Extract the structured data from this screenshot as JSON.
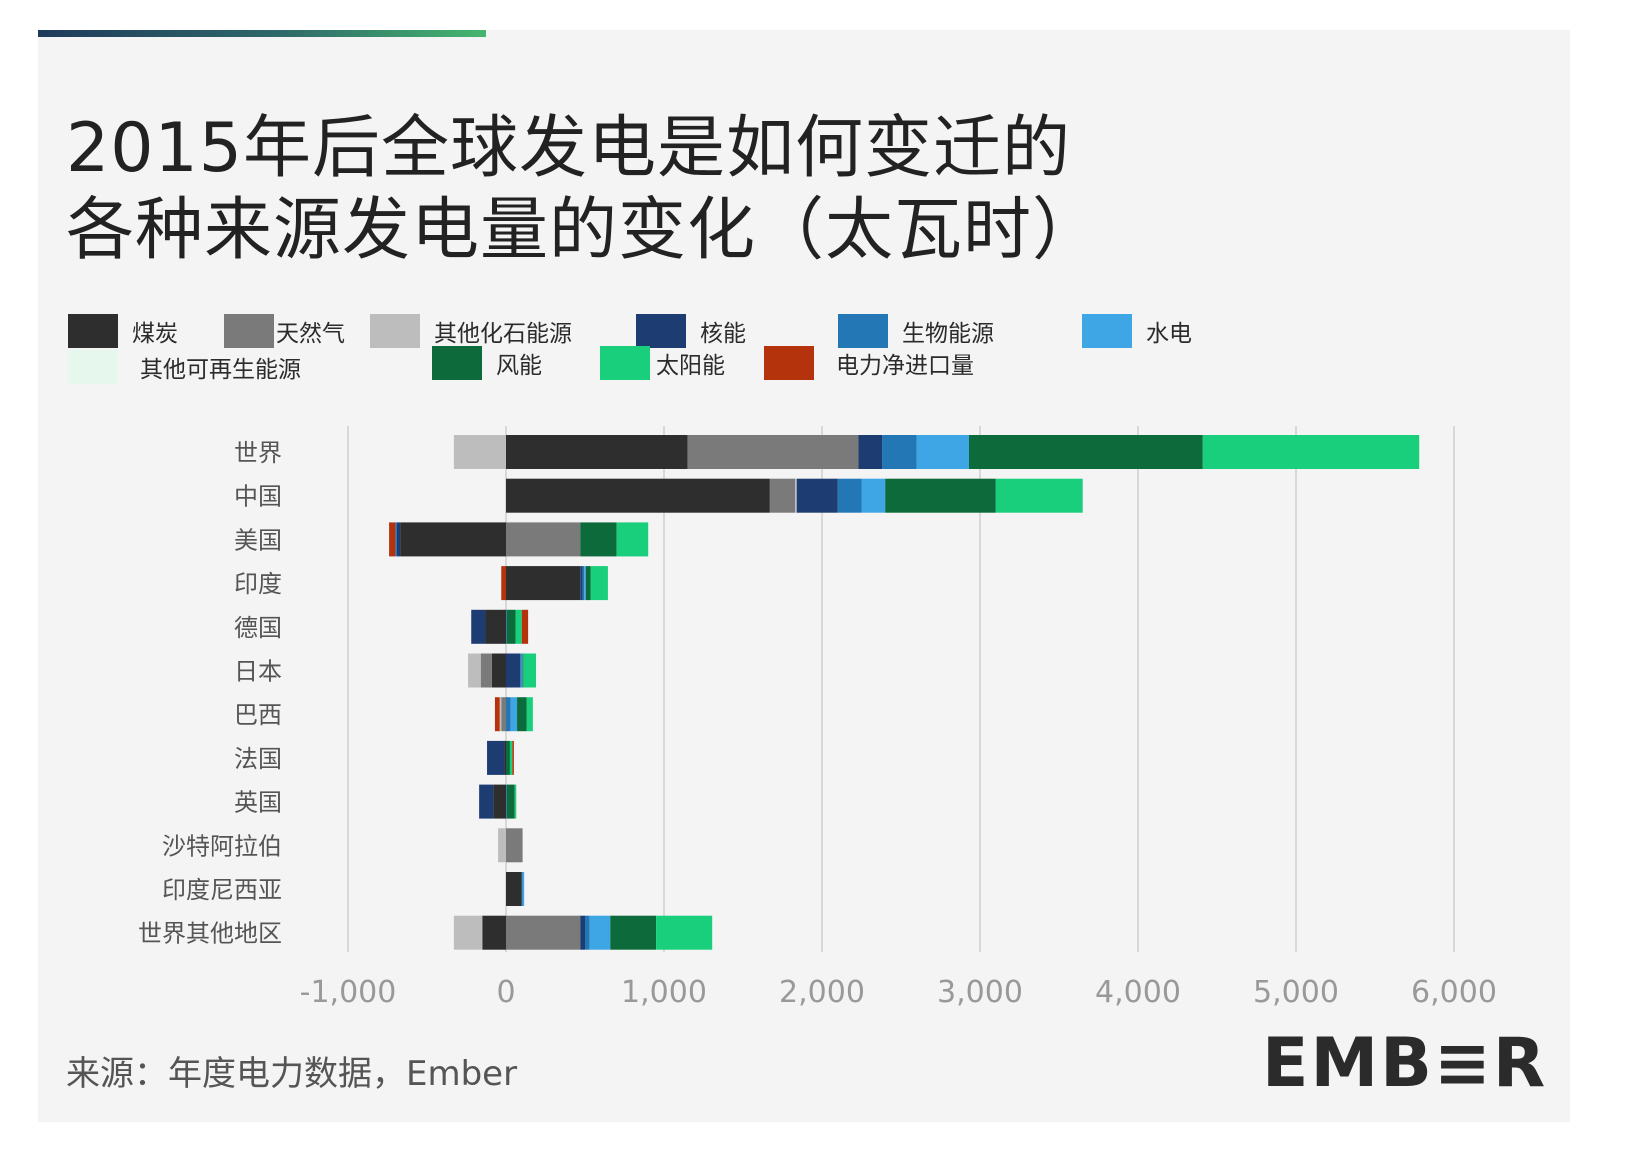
{
  "title_line1": "2015年后全球发电是如何变迁的",
  "title_line2": "各种来源发电量的变化（太瓦时）",
  "source": "来源：年度电力数据，Ember",
  "brand": "EMB≡R",
  "colors": {
    "coal": "#2e2e2e",
    "gas": "#7a7a7a",
    "other_fossil": "#bdbdbd",
    "nuclear": "#1d3c72",
    "bioenergy": "#2377b5",
    "hydro": "#3ea6e4",
    "other_renewables": "#e6f7ee",
    "wind": "#0d6b3b",
    "solar": "#19cf7c",
    "net_imports": "#b5330c",
    "grid": "#cfcfcf",
    "axis_text": "#999999",
    "label_text": "#555555"
  },
  "chart_data": {
    "type": "bar",
    "orientation": "horizontal",
    "stacked": true,
    "xlim": [
      -1000,
      6000
    ],
    "xticks": [
      -1000,
      0,
      1000,
      2000,
      3000,
      4000,
      5000,
      6000
    ],
    "xtick_labels": [
      "-1,000",
      "0",
      "1,000",
      "2,000",
      "3,000",
      "4,000",
      "5,000",
      "6,000"
    ],
    "grid": true,
    "legend_position": "top",
    "categories": [
      "世界",
      "中国",
      "美国",
      "印度",
      "德国",
      "日本",
      "巴西",
      "法国",
      "英国",
      "沙特阿拉伯",
      "印度尼西亚",
      "世界其他地区"
    ],
    "series": [
      {
        "key": "coal",
        "name": "煤炭",
        "values": [
          1150,
          1670,
          -670,
          470,
          -130,
          -90,
          0,
          -10,
          -80,
          0,
          100,
          -150
        ]
      },
      {
        "key": "gas",
        "name": "天然气",
        "values": [
          1080,
          160,
          470,
          0,
          0,
          -70,
          -30,
          0,
          0,
          105,
          0,
          470
        ]
      },
      {
        "key": "other_fossil",
        "name": "其他化石能源",
        "values": [
          -330,
          10,
          0,
          0,
          0,
          -80,
          -10,
          0,
          0,
          -50,
          0,
          -180
        ]
      },
      {
        "key": "nuclear",
        "name": "核能",
        "values": [
          150,
          260,
          -20,
          15,
          -90,
          90,
          0,
          -110,
          -90,
          0,
          0,
          30
        ]
      },
      {
        "key": "bioenergy",
        "name": "生物能源",
        "values": [
          220,
          150,
          -10,
          10,
          5,
          10,
          30,
          0,
          5,
          0,
          5,
          30
        ]
      },
      {
        "key": "hydro",
        "name": "水电",
        "values": [
          330,
          150,
          0,
          10,
          0,
          5,
          40,
          0,
          0,
          0,
          10,
          130
        ]
      },
      {
        "key": "other_renewables",
        "name": "其他可再生能源",
        "values": [
          0,
          0,
          0,
          0,
          0,
          0,
          0,
          0,
          0,
          0,
          0,
          0
        ]
      },
      {
        "key": "wind",
        "name": "风能",
        "values": [
          1480,
          700,
          230,
          30,
          55,
          5,
          60,
          25,
          50,
          0,
          0,
          290
        ]
      },
      {
        "key": "solar",
        "name": "太阳能",
        "values": [
          1370,
          550,
          200,
          110,
          40,
          80,
          40,
          15,
          10,
          0,
          0,
          355
        ]
      },
      {
        "key": "net_imports",
        "name": "电力净进口量",
        "values": [
          0,
          0,
          -40,
          -30,
          40,
          0,
          -30,
          10,
          0,
          0,
          0,
          0
        ]
      }
    ],
    "legend": [
      {
        "key": "coal",
        "label": "煤炭"
      },
      {
        "key": "gas",
        "label": "天然气"
      },
      {
        "key": "other_fossil",
        "label": "其他化石能源"
      },
      {
        "key": "nuclear",
        "label": "核能"
      },
      {
        "key": "bioenergy",
        "label": "生物能源"
      },
      {
        "key": "hydro",
        "label": "水电"
      },
      {
        "key": "other_renewables",
        "label": "其他可再生能源"
      },
      {
        "key": "wind",
        "label": "风能"
      },
      {
        "key": "solar",
        "label": "太阳能"
      },
      {
        "key": "net_imports",
        "label": "电力净进口量"
      }
    ]
  }
}
